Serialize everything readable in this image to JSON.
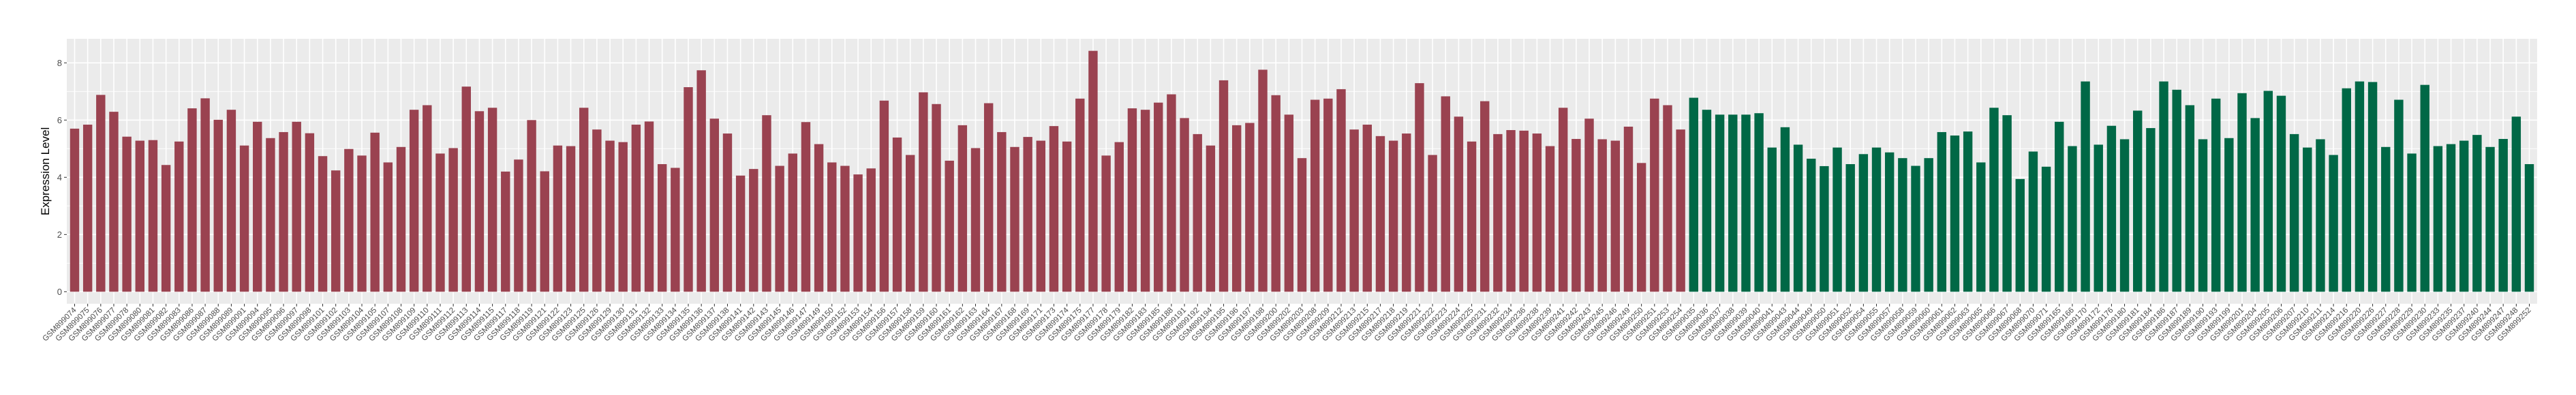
{
  "chart_data": {
    "type": "bar",
    "title": "",
    "xlabel": "",
    "ylabel": "Expression Level",
    "ylim": [
      -0.42,
      8.84
    ],
    "yticks": [
      0,
      2,
      4,
      6,
      8
    ],
    "grid": true,
    "legend": "none",
    "background": "#EBEBEB",
    "series": [
      {
        "color": "#9A4250",
        "categories": [
          "GSM899074",
          "GSM899075",
          "GSM899076",
          "GSM899077",
          "GSM899078",
          "GSM899080",
          "GSM899081",
          "GSM899082",
          "GSM899083",
          "GSM899086",
          "GSM899087",
          "GSM899088",
          "GSM899089",
          "GSM899091",
          "GSM899094",
          "GSM899095",
          "GSM899096",
          "GSM899097",
          "GSM899098",
          "GSM899101",
          "GSM899102",
          "GSM899103",
          "GSM899104",
          "GSM899105",
          "GSM899107",
          "GSM899108",
          "GSM899109",
          "GSM899110",
          "GSM899111",
          "GSM899112",
          "GSM899113",
          "GSM899114",
          "GSM899115",
          "GSM899117",
          "GSM899118",
          "GSM899119",
          "GSM899121",
          "GSM899122",
          "GSM899123",
          "GSM899125",
          "GSM899126",
          "GSM899129",
          "GSM899130",
          "GSM899131",
          "GSM899132",
          "GSM899133",
          "GSM899134",
          "GSM899135",
          "GSM899136",
          "GSM899137",
          "GSM899138",
          "GSM899141",
          "GSM899142",
          "GSM899143",
          "GSM899145",
          "GSM899146",
          "GSM899147",
          "GSM899149",
          "GSM899150",
          "GSM899152",
          "GSM899153",
          "GSM899154",
          "GSM899156",
          "GSM899157",
          "GSM899158",
          "GSM899159",
          "GSM899160",
          "GSM899161",
          "GSM899162",
          "GSM899163",
          "GSM899164",
          "GSM899167",
          "GSM899168",
          "GSM899169",
          "GSM899171",
          "GSM899173",
          "GSM899174",
          "GSM899175",
          "GSM899177",
          "GSM899178",
          "GSM899179",
          "GSM899182",
          "GSM899183",
          "GSM899185",
          "GSM899188",
          "GSM899191",
          "GSM899192",
          "GSM899194",
          "GSM899195",
          "GSM899196",
          "GSM899197",
          "GSM899198",
          "GSM899200",
          "GSM899202",
          "GSM899203",
          "GSM899208",
          "GSM899209",
          "GSM899212",
          "GSM899213",
          "GSM899215",
          "GSM899217",
          "GSM899218",
          "GSM899219",
          "GSM899221",
          "GSM899222",
          "GSM899223",
          "GSM899224",
          "GSM899225",
          "GSM899231",
          "GSM899232",
          "GSM899234",
          "GSM899236",
          "GSM899238",
          "GSM899239",
          "GSM899241",
          "GSM899242",
          "GSM899243",
          "GSM899245",
          "GSM899246",
          "GSM899249",
          "GSM899250",
          "GSM899251",
          "GSM899253",
          "GSM899254"
        ],
        "values": [
          5.7,
          5.84,
          6.88,
          6.29,
          5.42,
          5.28,
          5.3,
          4.43,
          5.25,
          6.41,
          6.76,
          6.01,
          6.36,
          5.11,
          5.94,
          5.37,
          5.58,
          5.94,
          5.54,
          4.74,
          4.24,
          4.99,
          4.76,
          5.56,
          4.52,
          5.06,
          6.36,
          6.52,
          4.83,
          5.02,
          7.17,
          6.31,
          6.43,
          4.2,
          4.62,
          6.0,
          4.21,
          5.11,
          5.09,
          6.43,
          5.67,
          5.28,
          5.23,
          5.84,
          5.95,
          4.46,
          4.33,
          7.15,
          7.74,
          6.05,
          5.53,
          4.06,
          4.29,
          6.17,
          4.4,
          4.83,
          5.93,
          5.16,
          4.52,
          4.4,
          4.1,
          4.31,
          6.68,
          5.39,
          4.78,
          6.97,
          6.56,
          4.58,
          5.82,
          5.02,
          6.59,
          5.58,
          5.06,
          5.41,
          5.28,
          5.79,
          5.25,
          6.75,
          8.42,
          4.76,
          5.23,
          6.41,
          6.36,
          6.61,
          6.9,
          6.07,
          5.51,
          5.11,
          7.39,
          5.82,
          5.9,
          7.76,
          6.87,
          6.19,
          4.67,
          6.71,
          6.75,
          7.08,
          5.67,
          5.84,
          5.44,
          5.28,
          5.53,
          7.29,
          4.78,
          6.83,
          6.12,
          5.25,
          6.66,
          5.51,
          5.65,
          5.63,
          5.53,
          5.09,
          6.43,
          5.34,
          6.05,
          5.33,
          5.28,
          5.77,
          4.5,
          6.75,
          6.52,
          5.67
        ]
      },
      {
        "color": "#006846",
        "categories": [
          "GSM899035",
          "GSM899036",
          "GSM899037",
          "GSM899038",
          "GSM899039",
          "GSM899040",
          "GSM899041",
          "GSM899043",
          "GSM899044",
          "GSM899049",
          "GSM899050",
          "GSM899051",
          "GSM899052",
          "GSM899054",
          "GSM899055",
          "GSM899057",
          "GSM899058",
          "GSM899059",
          "GSM899060",
          "GSM899061",
          "GSM899062",
          "GSM899063",
          "GSM899065",
          "GSM899066",
          "GSM899067",
          "GSM899068",
          "GSM899070",
          "GSM899071",
          "GSM899165",
          "GSM899166",
          "GSM899170",
          "GSM899172",
          "GSM899176",
          "GSM899180",
          "GSM899181",
          "GSM899184",
          "GSM899186",
          "GSM899187",
          "GSM899189",
          "GSM899190",
          "GSM899193",
          "GSM899199",
          "GSM899201",
          "GSM899204",
          "GSM899205",
          "GSM899206",
          "GSM899207",
          "GSM899210",
          "GSM899211",
          "GSM899214",
          "GSM899216",
          "GSM899220",
          "GSM899226",
          "GSM899227",
          "GSM899228",
          "GSM899229",
          "GSM899230",
          "GSM899233",
          "GSM899235",
          "GSM899237",
          "GSM899240",
          "GSM899244",
          "GSM899247",
          "GSM899248",
          "GSM899252"
        ],
        "values": [
          6.78,
          6.36,
          6.19,
          6.19,
          6.19,
          6.24,
          5.04,
          5.75,
          5.14,
          4.65,
          4.39,
          5.04,
          4.46,
          4.81,
          5.04,
          4.87,
          4.67,
          4.4,
          4.67,
          5.58,
          5.46,
          5.6,
          4.52,
          6.43,
          6.17,
          3.94,
          4.9,
          4.37,
          5.94,
          5.09,
          7.35,
          5.14,
          5.8,
          5.33,
          6.33,
          5.72,
          7.35,
          7.06,
          6.52,
          5.33,
          6.75,
          5.37,
          6.94,
          6.07,
          7.02,
          6.85,
          5.51,
          5.04,
          5.33,
          4.78,
          7.11,
          7.35,
          7.33,
          5.06,
          6.71,
          4.83,
          7.23,
          5.09,
          5.16,
          5.28,
          5.48,
          5.06,
          5.34,
          6.12,
          4.46
        ]
      }
    ]
  }
}
